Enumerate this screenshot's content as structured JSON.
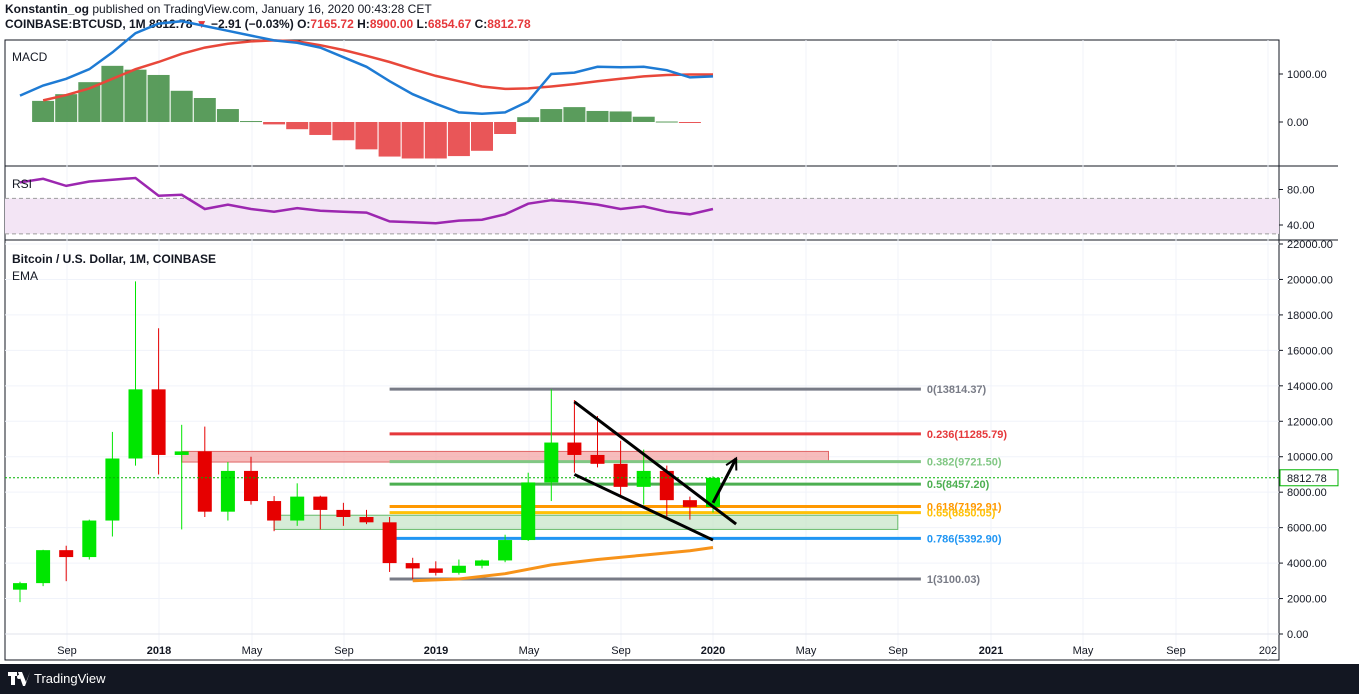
{
  "header": {
    "author": "Konstantin_og",
    "published_text": "published on TradingView.com, January 16, 2020 00:43:28 CET",
    "symbol": "COINBASE:BTCUSD, 1M",
    "last": "8812.78",
    "change": "−2.91 (−0.03%)",
    "o_label": "O:",
    "o_value": "7165.72",
    "h_label": "H:",
    "h_value": "8900.00",
    "l_label": "L:",
    "l_value": "6854.67",
    "c_label": "C:",
    "c_value": "8812.78"
  },
  "footer": {
    "brand": "TradingView"
  },
  "colors": {
    "up": "#00e600",
    "down": "#e60000",
    "macd_line": "#1e7bd4",
    "signal_line": "#e8473a",
    "rsi_line": "#9c27b0",
    "ema": "#f7931a",
    "price_line": "#00b300"
  },
  "chart_data": [
    {
      "type": "candlestick",
      "title": "Bitcoin / U.S. Dollar, 1M, COINBASE",
      "indicator_label": "EMA",
      "x_tick_labels": [
        "Sep",
        "2018",
        "May",
        "Sep",
        "2019",
        "May",
        "Sep",
        "2020",
        "May",
        "Sep",
        "2021",
        "May",
        "Sep",
        "202"
      ],
      "y_ticks": [
        0,
        2000,
        4000,
        6000,
        8000,
        10000,
        12000,
        14000,
        16000,
        18000,
        20000,
        22000
      ],
      "y_tick_labels": [
        "0.00",
        "2000.00",
        "4000.00",
        "6000.00",
        "8000.00",
        "10000.00",
        "12000.00",
        "14000.00",
        "16000.00",
        "18000.00",
        "20000.00",
        "22000.00"
      ],
      "ylim": [
        0,
        22000
      ],
      "last_price_label": "8812.78",
      "last_price": 8812.78,
      "candles": [
        {
          "date": "2017-07",
          "o": 2500,
          "h": 2950,
          "l": 1800,
          "c": 2870
        },
        {
          "date": "2017-08",
          "o": 2870,
          "h": 4750,
          "l": 2700,
          "c": 4730
        },
        {
          "date": "2017-09",
          "o": 4730,
          "h": 4980,
          "l": 2980,
          "c": 4340
        },
        {
          "date": "2017-10",
          "o": 4340,
          "h": 6450,
          "l": 4200,
          "c": 6400
        },
        {
          "date": "2017-11",
          "o": 6400,
          "h": 11400,
          "l": 5500,
          "c": 9900
        },
        {
          "date": "2017-12",
          "o": 9900,
          "h": 19890,
          "l": 9500,
          "c": 13800
        },
        {
          "date": "2018-01",
          "o": 13800,
          "h": 17250,
          "l": 9000,
          "c": 10100
        },
        {
          "date": "2018-02",
          "o": 10100,
          "h": 11800,
          "l": 5900,
          "c": 10300
        },
        {
          "date": "2018-03",
          "o": 10300,
          "h": 11700,
          "l": 6600,
          "c": 6900
        },
        {
          "date": "2018-04",
          "o": 6900,
          "h": 9700,
          "l": 6400,
          "c": 9200
        },
        {
          "date": "2018-05",
          "o": 9200,
          "h": 10000,
          "l": 7300,
          "c": 7500
        },
        {
          "date": "2018-06",
          "o": 7500,
          "h": 7780,
          "l": 5800,
          "c": 6400
        },
        {
          "date": "2018-07",
          "o": 6400,
          "h": 8500,
          "l": 6100,
          "c": 7750
        },
        {
          "date": "2018-08",
          "o": 7750,
          "h": 7800,
          "l": 5900,
          "c": 7000
        },
        {
          "date": "2018-09",
          "o": 7000,
          "h": 7400,
          "l": 6100,
          "c": 6600
        },
        {
          "date": "2018-10",
          "o": 6600,
          "h": 7000,
          "l": 6200,
          "c": 6300
        },
        {
          "date": "2018-11",
          "o": 6300,
          "h": 6600,
          "l": 3500,
          "c": 4000
        },
        {
          "date": "2018-12",
          "o": 4000,
          "h": 4300,
          "l": 3100,
          "c": 3700
        },
        {
          "date": "2019-01",
          "o": 3700,
          "h": 4100,
          "l": 3300,
          "c": 3450
        },
        {
          "date": "2019-02",
          "o": 3450,
          "h": 4200,
          "l": 3350,
          "c": 3850
        },
        {
          "date": "2019-03",
          "o": 3850,
          "h": 4200,
          "l": 3700,
          "c": 4150
        },
        {
          "date": "2019-04",
          "o": 4150,
          "h": 5600,
          "l": 4050,
          "c": 5300
        },
        {
          "date": "2019-05",
          "o": 5300,
          "h": 9100,
          "l": 5250,
          "c": 8550
        },
        {
          "date": "2019-06",
          "o": 8550,
          "h": 13800,
          "l": 7500,
          "c": 10800
        },
        {
          "date": "2019-07",
          "o": 10800,
          "h": 13200,
          "l": 9100,
          "c": 10100
        },
        {
          "date": "2019-08",
          "o": 10100,
          "h": 12300,
          "l": 9400,
          "c": 9600
        },
        {
          "date": "2019-09",
          "o": 9600,
          "h": 10900,
          "l": 7700,
          "c": 8300
        },
        {
          "date": "2019-10",
          "o": 8300,
          "h": 10400,
          "l": 7300,
          "c": 9200
        },
        {
          "date": "2019-11",
          "o": 9200,
          "h": 9500,
          "l": 6500,
          "c": 7550
        },
        {
          "date": "2019-12",
          "o": 7550,
          "h": 7750,
          "l": 6450,
          "c": 7170
        },
        {
          "date": "2020-01",
          "o": 7170,
          "h": 8900,
          "l": 6855,
          "c": 8813
        }
      ],
      "ema": [
        {
          "date": "2018-12",
          "v": 3000
        },
        {
          "date": "2019-02",
          "v": 3100
        },
        {
          "date": "2019-04",
          "v": 3400
        },
        {
          "date": "2019-06",
          "v": 3900
        },
        {
          "date": "2019-08",
          "v": 4200
        },
        {
          "date": "2019-10",
          "v": 4450
        },
        {
          "date": "2019-12",
          "v": 4700
        },
        {
          "date": "2020-01",
          "v": 4880
        }
      ],
      "fib_levels": [
        {
          "label": "0(13814.37)",
          "value": 13814.37,
          "color": "#787b86"
        },
        {
          "label": "0.236(11285.79)",
          "value": 11285.79,
          "color": "#e5383b"
        },
        {
          "label": "0.382(9721.50)",
          "value": 9721.5,
          "color": "#81c784"
        },
        {
          "label": "0.5(8457.20)",
          "value": 8457.2,
          "color": "#4caf50"
        },
        {
          "label": "0.618(7192.91)",
          "value": 7192.91,
          "color": "#ff9800"
        },
        {
          "label": "0.65(6850.05)",
          "value": 6850.05,
          "color": "#ffc107"
        },
        {
          "label": "0.786(5392.90)",
          "value": 5392.9,
          "color": "#2196f3"
        },
        {
          "label": "1(3100.03)",
          "value": 3100.03,
          "color": "#787b86"
        }
      ],
      "zones": [
        {
          "name": "resistance",
          "from": "2018-02",
          "to": "2020-06",
          "low": 9700,
          "high": 10300,
          "color": "#f4a6a6"
        },
        {
          "name": "support",
          "from": "2018-06",
          "to": "2020-09",
          "low": 5900,
          "high": 6700,
          "color": "#c8e6c9"
        }
      ],
      "annotations": [
        {
          "type": "wedge-upper",
          "from": {
            "date": "2019-07",
            "v": 13100
          },
          "to": {
            "date": "2020-02",
            "v": 6200
          }
        },
        {
          "type": "wedge-lower",
          "from": {
            "date": "2019-07",
            "v": 9000
          },
          "to": {
            "date": "2020-01",
            "v": 5300
          }
        },
        {
          "type": "arrow",
          "from": {
            "date": "2020-01",
            "v": 7400
          },
          "to": {
            "date": "2020-02",
            "v": 9900
          }
        }
      ]
    },
    {
      "type": "histogram+line",
      "title": "MACD",
      "y_ticks": [
        0,
        1000
      ],
      "y_tick_labels": [
        "0.00",
        "1000.00"
      ],
      "ylim": [
        -760,
        1700
      ],
      "histogram": [
        {
          "date": "2017-08",
          "v": 440
        },
        {
          "date": "2017-09",
          "v": 580
        },
        {
          "date": "2017-10",
          "v": 830
        },
        {
          "date": "2017-11",
          "v": 1170
        },
        {
          "date": "2017-12",
          "v": 1090
        },
        {
          "date": "2018-01",
          "v": 980
        },
        {
          "date": "2018-02",
          "v": 650
        },
        {
          "date": "2018-03",
          "v": 500
        },
        {
          "date": "2018-04",
          "v": 270
        },
        {
          "date": "2018-05",
          "v": 20
        },
        {
          "date": "2018-06",
          "v": -50
        },
        {
          "date": "2018-07",
          "v": -150
        },
        {
          "date": "2018-08",
          "v": -270
        },
        {
          "date": "2018-09",
          "v": -380
        },
        {
          "date": "2018-10",
          "v": -570
        },
        {
          "date": "2018-11",
          "v": -720
        },
        {
          "date": "2018-12",
          "v": -760
        },
        {
          "date": "2019-01",
          "v": -760
        },
        {
          "date": "2019-02",
          "v": -710
        },
        {
          "date": "2019-03",
          "v": -600
        },
        {
          "date": "2019-04",
          "v": -250
        },
        {
          "date": "2019-05",
          "v": 100
        },
        {
          "date": "2019-06",
          "v": 270
        },
        {
          "date": "2019-07",
          "v": 310
        },
        {
          "date": "2019-08",
          "v": 230
        },
        {
          "date": "2019-09",
          "v": 220
        },
        {
          "date": "2019-10",
          "v": 110
        },
        {
          "date": "2019-11",
          "v": 10
        },
        {
          "date": "2019-12",
          "v": -20
        }
      ],
      "macd": [
        {
          "date": "2017-07",
          "v": 550
        },
        {
          "date": "2017-08",
          "v": 760
        },
        {
          "date": "2017-09",
          "v": 900
        },
        {
          "date": "2017-10",
          "v": 1100
        },
        {
          "date": "2017-11",
          "v": 1450
        },
        {
          "date": "2017-12",
          "v": 1850
        },
        {
          "date": "2018-01",
          "v": 2050
        },
        {
          "date": "2018-02",
          "v": 2100
        },
        {
          "date": "2018-03",
          "v": 2000
        },
        {
          "date": "2018-04",
          "v": 1900
        },
        {
          "date": "2018-05",
          "v": 1800
        },
        {
          "date": "2018-06",
          "v": 1700
        },
        {
          "date": "2018-07",
          "v": 1650
        },
        {
          "date": "2018-08",
          "v": 1550
        },
        {
          "date": "2018-09",
          "v": 1350
        },
        {
          "date": "2018-10",
          "v": 1150
        },
        {
          "date": "2018-11",
          "v": 850
        },
        {
          "date": "2018-12",
          "v": 580
        },
        {
          "date": "2019-01",
          "v": 380
        },
        {
          "date": "2019-02",
          "v": 200
        },
        {
          "date": "2019-03",
          "v": 170
        },
        {
          "date": "2019-04",
          "v": 200
        },
        {
          "date": "2019-05",
          "v": 430
        },
        {
          "date": "2019-06",
          "v": 1000
        },
        {
          "date": "2019-07",
          "v": 1030
        },
        {
          "date": "2019-08",
          "v": 1150
        },
        {
          "date": "2019-09",
          "v": 1140
        },
        {
          "date": "2019-10",
          "v": 1150
        },
        {
          "date": "2019-11",
          "v": 1080
        },
        {
          "date": "2019-12",
          "v": 930
        },
        {
          "date": "2020-01",
          "v": 950
        }
      ],
      "signal": [
        {
          "date": "2017-08",
          "v": 450
        },
        {
          "date": "2017-09",
          "v": 560
        },
        {
          "date": "2017-10",
          "v": 700
        },
        {
          "date": "2017-11",
          "v": 900
        },
        {
          "date": "2017-12",
          "v": 1100
        },
        {
          "date": "2018-01",
          "v": 1250
        },
        {
          "date": "2018-02",
          "v": 1420
        },
        {
          "date": "2018-03",
          "v": 1550
        },
        {
          "date": "2018-04",
          "v": 1630
        },
        {
          "date": "2018-05",
          "v": 1680
        },
        {
          "date": "2018-06",
          "v": 1700
        },
        {
          "date": "2018-07",
          "v": 1680
        },
        {
          "date": "2018-08",
          "v": 1600
        },
        {
          "date": "2018-09",
          "v": 1500
        },
        {
          "date": "2018-10",
          "v": 1380
        },
        {
          "date": "2018-11",
          "v": 1250
        },
        {
          "date": "2018-12",
          "v": 1100
        },
        {
          "date": "2019-01",
          "v": 960
        },
        {
          "date": "2019-02",
          "v": 850
        },
        {
          "date": "2019-03",
          "v": 740
        },
        {
          "date": "2019-04",
          "v": 690
        },
        {
          "date": "2019-05",
          "v": 700
        },
        {
          "date": "2019-06",
          "v": 740
        },
        {
          "date": "2019-07",
          "v": 790
        },
        {
          "date": "2019-08",
          "v": 850
        },
        {
          "date": "2019-09",
          "v": 900
        },
        {
          "date": "2019-10",
          "v": 950
        },
        {
          "date": "2019-11",
          "v": 980
        },
        {
          "date": "2019-12",
          "v": 990
        },
        {
          "date": "2020-01",
          "v": 990
        }
      ]
    },
    {
      "type": "line",
      "title": "RSI",
      "y_ticks": [
        40,
        80
      ],
      "y_tick_labels": [
        "40.00",
        "80.00"
      ],
      "ylim": [
        20,
        100
      ],
      "band": [
        30,
        70
      ],
      "rsi": [
        {
          "date": "2017-07",
          "v": 88
        },
        {
          "date": "2017-08",
          "v": 92
        },
        {
          "date": "2017-09",
          "v": 84
        },
        {
          "date": "2017-10",
          "v": 89
        },
        {
          "date": "2017-11",
          "v": 91
        },
        {
          "date": "2017-12",
          "v": 93
        },
        {
          "date": "2018-01",
          "v": 73
        },
        {
          "date": "2018-02",
          "v": 74
        },
        {
          "date": "2018-03",
          "v": 58
        },
        {
          "date": "2018-04",
          "v": 63
        },
        {
          "date": "2018-05",
          "v": 58
        },
        {
          "date": "2018-06",
          "v": 55
        },
        {
          "date": "2018-07",
          "v": 59
        },
        {
          "date": "2018-08",
          "v": 56
        },
        {
          "date": "2018-09",
          "v": 55
        },
        {
          "date": "2018-10",
          "v": 54
        },
        {
          "date": "2018-11",
          "v": 44
        },
        {
          "date": "2018-12",
          "v": 43
        },
        {
          "date": "2019-01",
          "v": 42
        },
        {
          "date": "2019-02",
          "v": 45
        },
        {
          "date": "2019-03",
          "v": 46
        },
        {
          "date": "2019-04",
          "v": 52
        },
        {
          "date": "2019-05",
          "v": 64
        },
        {
          "date": "2019-06",
          "v": 68
        },
        {
          "date": "2019-07",
          "v": 66
        },
        {
          "date": "2019-08",
          "v": 63
        },
        {
          "date": "2019-09",
          "v": 58
        },
        {
          "date": "2019-10",
          "v": 61
        },
        {
          "date": "2019-11",
          "v": 55
        },
        {
          "date": "2019-12",
          "v": 52
        },
        {
          "date": "2020-01",
          "v": 58
        }
      ]
    }
  ]
}
